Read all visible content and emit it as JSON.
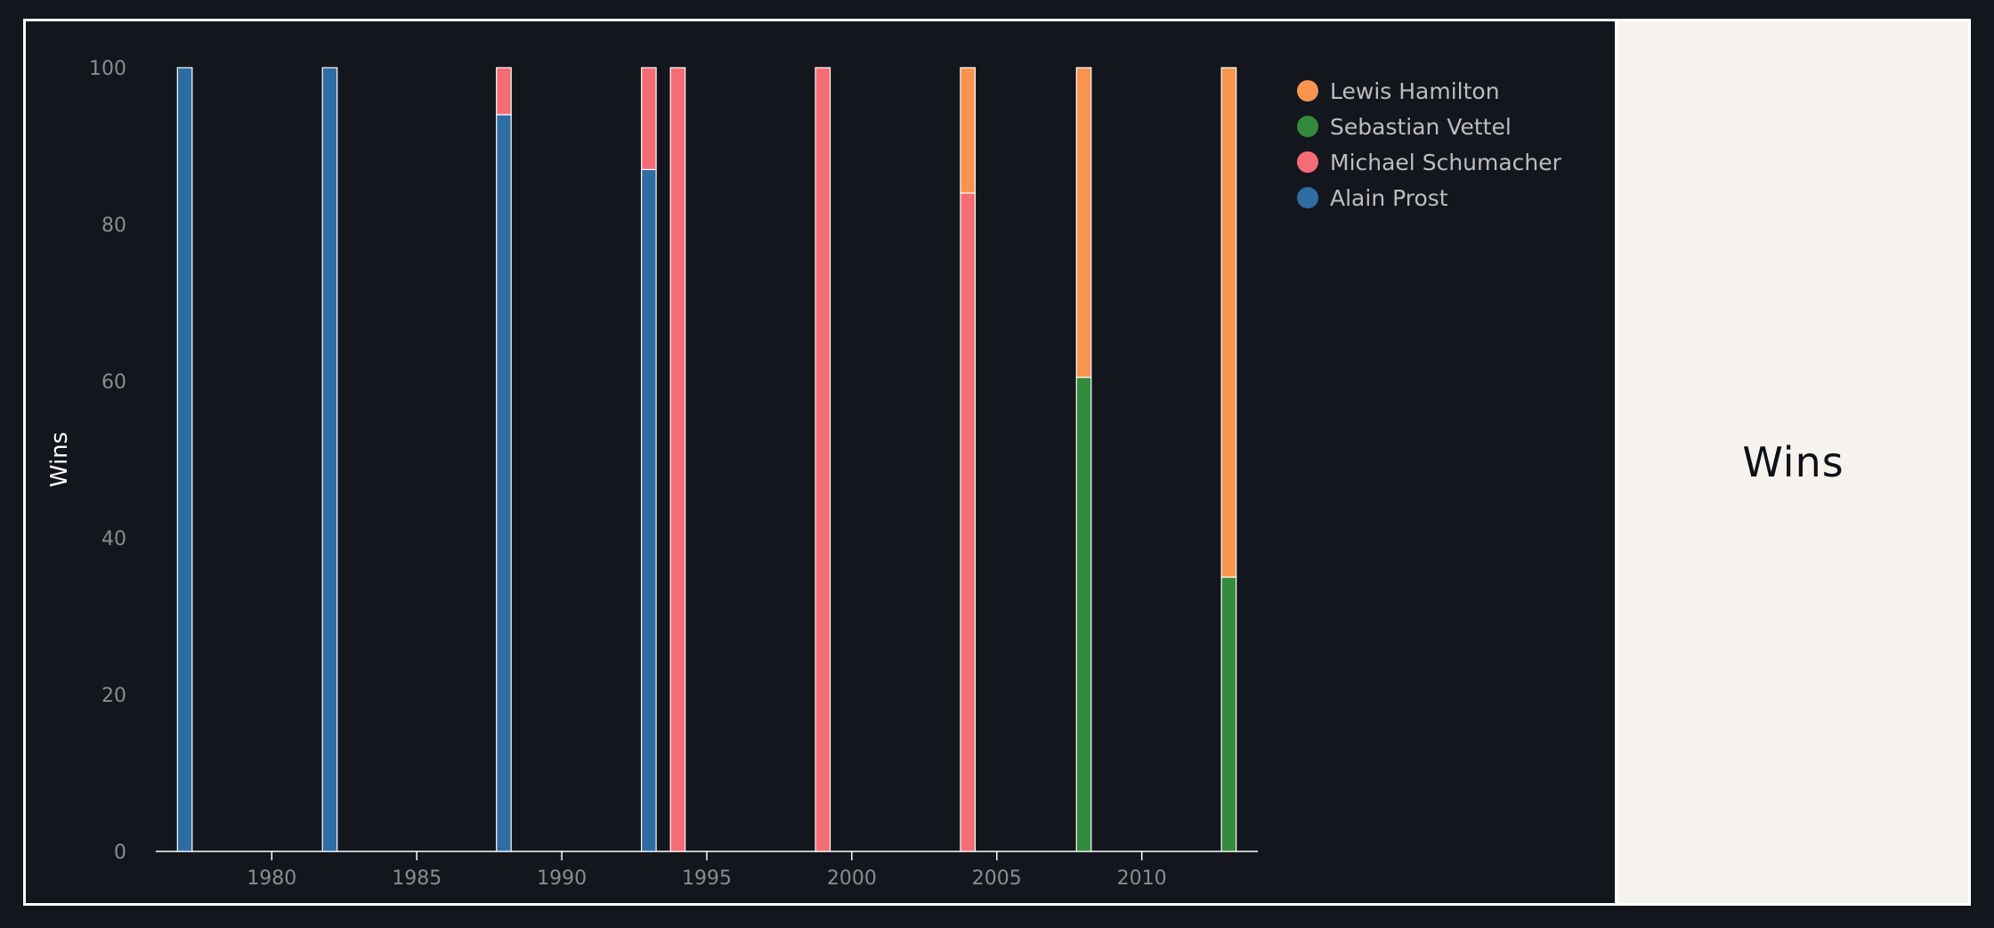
{
  "chart_data": {
    "type": "bar",
    "stacked": true,
    "normalized_percent": true,
    "ylabel": "Wins",
    "ylim": [
      0,
      100
    ],
    "yticks": [
      0,
      20,
      40,
      60,
      80,
      100
    ],
    "xlim": [
      1976,
      2014
    ],
    "xticks": [
      1980,
      1985,
      1990,
      1995,
      2000,
      2005,
      2010
    ],
    "x": [
      1977,
      1982,
      1988,
      1993,
      1994,
      1999,
      2004,
      2008,
      2013
    ],
    "series": [
      {
        "name": "Alain Prost",
        "color": "#2e6da4",
        "values": [
          100,
          100,
          94,
          87,
          0,
          0,
          0,
          0,
          0
        ]
      },
      {
        "name": "Michael Schumacher",
        "color": "#f46d75",
        "values": [
          0,
          0,
          6,
          13,
          100,
          100,
          84,
          0,
          0
        ]
      },
      {
        "name": "Sebastian Vettel",
        "color": "#348a3c",
        "values": [
          0,
          0,
          0,
          0,
          0,
          0,
          0,
          60.5,
          35
        ]
      },
      {
        "name": "Lewis Hamilton",
        "color": "#f9944f",
        "values": [
          0,
          0,
          0,
          0,
          0,
          0,
          16,
          39.5,
          65
        ]
      }
    ],
    "legend": {
      "placement": "top-right",
      "order": [
        "Lewis Hamilton",
        "Sebastian Vettel",
        "Michael Schumacher",
        "Alain Prost"
      ]
    },
    "grid": false
  },
  "side_panel": {
    "title": "Wins"
  }
}
